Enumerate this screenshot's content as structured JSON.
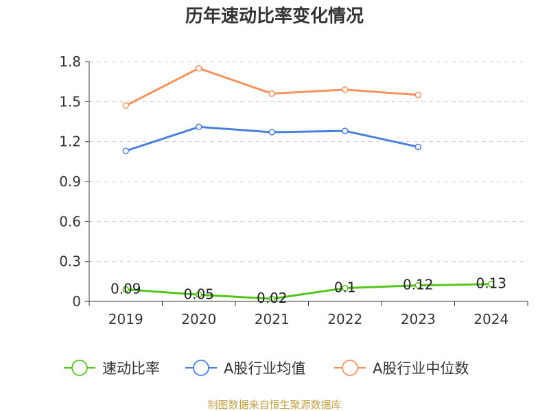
{
  "chart_data": {
    "type": "line",
    "title": "历年速动比率变化情况",
    "categories": [
      "2019",
      "2020",
      "2021",
      "2022",
      "2023",
      "2024"
    ],
    "ylim": [
      0,
      1.8
    ],
    "yticks": [
      "0",
      "0.3",
      "0.6",
      "0.9",
      "1.2",
      "1.5",
      "1.8"
    ],
    "grid": true,
    "legend_position": "bottom",
    "series": [
      {
        "name": "速动比率",
        "color": "#52c41a",
        "values": [
          0.09,
          0.05,
          0.02,
          0.1,
          0.12,
          0.13
        ],
        "labels": [
          "0.09",
          "0.05",
          "0.02",
          "0.1",
          "0.12",
          "0.13"
        ]
      },
      {
        "name": "A股行业均值",
        "color": "#4a7fe0",
        "values": [
          1.13,
          1.31,
          1.27,
          1.28,
          1.16,
          null
        ]
      },
      {
        "name": "A股行业中位数",
        "color": "#f5925e",
        "values": [
          1.47,
          1.75,
          1.56,
          1.59,
          1.55,
          null
        ]
      }
    ]
  },
  "source": "制图数据来自恒生聚源数据库"
}
